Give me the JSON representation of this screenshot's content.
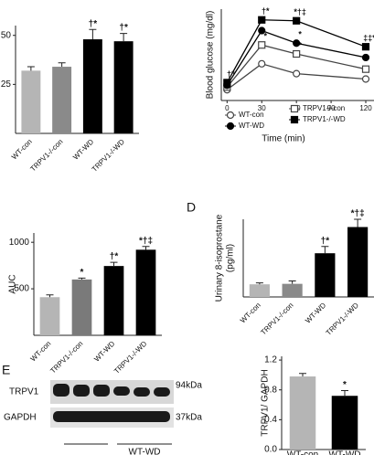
{
  "chart_data": [
    {
      "type": "bar",
      "categories": [
        "WT-con",
        "TRPV1-/-con",
        "WT-WD",
        "TRPV1-/-WD"
      ],
      "values": [
        32,
        34,
        48,
        47
      ],
      "errors": [
        2,
        2,
        5,
        4
      ],
      "colors": [
        "#b5b5b5",
        "#8a8a8a",
        "#000000",
        "#000000"
      ],
      "ylim": [
        0,
        55
      ],
      "yticks": [
        25,
        50
      ],
      "annotations": [
        null,
        null,
        "†*",
        "†*"
      ]
    },
    {
      "type": "line",
      "x": [
        0,
        30,
        60,
        120
      ],
      "xlim": [
        -5,
        120
      ],
      "xticks": [
        0,
        30,
        60,
        90,
        120
      ],
      "ylim": [
        50,
        560
      ],
      "y_label": "Blood glucose (mg/dl)",
      "x_label": "Time (min)",
      "series": [
        {
          "name": "WT-con",
          "color": "#444444",
          "marker": "circle",
          "filled": false,
          "values": [
            110,
            255,
            200,
            170
          ],
          "annotations": [
            null,
            null,
            null,
            null
          ]
        },
        {
          "name": "TRPV1-/-con",
          "color": "#444444",
          "marker": "square",
          "filled": false,
          "values": [
            125,
            360,
            310,
            225
          ],
          "annotations": [
            null,
            "*",
            "*",
            null
          ]
        },
        {
          "name": "WT-WD",
          "color": "#000000",
          "marker": "circle",
          "filled": true,
          "values": [
            135,
            440,
            370,
            290
          ],
          "annotations": [
            null,
            null,
            "*",
            null
          ]
        },
        {
          "name": "TRPV1-/-WD",
          "color": "#000000",
          "marker": "square",
          "filled": true,
          "values": [
            150,
            500,
            495,
            350
          ],
          "annotations": [
            "†*",
            "†*",
            "*†‡",
            "‡‡*"
          ]
        }
      ]
    },
    {
      "type": "bar",
      "categories": [
        "WT-con",
        "TRPV1-/-con",
        "WT-WD",
        "TRPV1-/-WD"
      ],
      "values": [
        410,
        600,
        745,
        920
      ],
      "errors": [
        25,
        15,
        40,
        35
      ],
      "colors": [
        "#b5b5b5",
        "#7a7a7a",
        "#000000",
        "#000000"
      ],
      "ylim": [
        0,
        1100
      ],
      "yticks": [
        500,
        1000
      ],
      "y_label": "AUC",
      "annotations": [
        null,
        "*",
        "†*",
        "*†‡"
      ]
    },
    {
      "type": "bar",
      "panel": "D",
      "categories": [
        "WT-con",
        "TRPV1-/-con",
        "WT-WD",
        "TRPV1-/-WD"
      ],
      "values": [
        130,
        135,
        450,
        720
      ],
      "errors": [
        15,
        30,
        70,
        80
      ],
      "colors": [
        "#b5b5b5",
        "#8a8a8a",
        "#000000",
        "#000000"
      ],
      "ylim": [
        0,
        800
      ],
      "y_label": [
        "Urinary 8-isoprostane",
        "(pg/ml)"
      ],
      "annotations": [
        null,
        null,
        "†*",
        "*†‡"
      ]
    },
    {
      "type": "bar",
      "categories": [
        "WT-con",
        "WT-WD"
      ],
      "values": [
        0.98,
        0.72
      ],
      "errors": [
        0.04,
        0.07
      ],
      "colors": [
        "#b5b5b5",
        "#000000"
      ],
      "ylim": [
        0,
        1.25
      ],
      "yticks": [
        {
          "value": 0,
          "label": "0.0"
        },
        {
          "value": 0.4,
          "label": "0.4"
        },
        {
          "value": 0.8,
          "label": "0.8"
        },
        {
          "value": 1.2,
          "label": "1.2"
        }
      ],
      "y_label": "TRPV1/ GAPDH",
      "annotations": [
        null,
        "*"
      ]
    }
  ],
  "blot": {
    "panel": "E",
    "rows": [
      "TRPV1",
      "GAPDH"
    ],
    "sizes": [
      "94kDa",
      "37kDa"
    ],
    "group": "WT-WD"
  }
}
